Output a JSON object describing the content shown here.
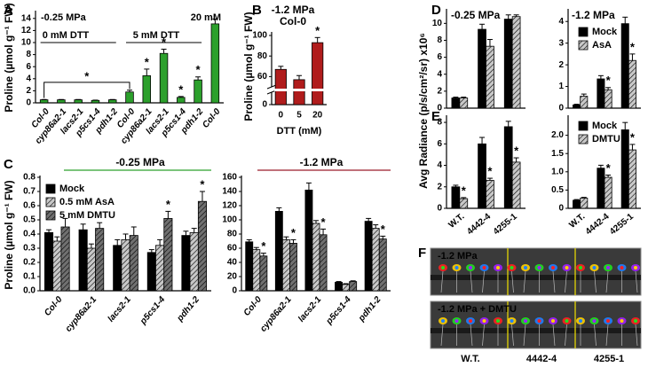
{
  "chart_data": [
    {
      "type": "bar",
      "panel": "A",
      "ylabel": "Proline (µmol g⁻¹ FW)",
      "notes": [
        "-0.25 MPa",
        "20 mM",
        "0 mM DTT",
        "5 mM DTT"
      ],
      "bracket_note": "*",
      "categories": [
        "Col-0",
        "cyp86a2-1",
        "lacs2-1",
        "p5cs1-4",
        "pdh1-2",
        "Col-0",
        "cyp86a2-1",
        "lacs2-1",
        "p5cs1-4",
        "pdh1-2",
        "Col-0"
      ],
      "series": [
        {
          "color": "#2ca02c",
          "values": [
            0.5,
            0.5,
            0.5,
            0.4,
            0.5,
            1.8,
            4.5,
            8.2,
            0.9,
            3.8,
            13.1
          ],
          "errors": [
            0.05,
            0.05,
            0.05,
            0.05,
            0.05,
            0.3,
            1.1,
            0.7,
            0.15,
            0.5,
            0.8
          ],
          "annotations": [
            null,
            null,
            null,
            null,
            null,
            null,
            "*",
            "*",
            "*",
            "*",
            null
          ]
        }
      ],
      "ylim": [
        0,
        15
      ],
      "yticks": [
        0,
        2,
        4,
        6,
        8,
        10,
        12,
        14
      ]
    },
    {
      "type": "bar",
      "panel": "B",
      "title": "-1.2 MPa",
      "subtitle": "Col-0",
      "ylabel": "Proline (µmol g⁻¹ FW)",
      "xlabel": "DTT (mM)",
      "categories": [
        "0",
        "5",
        "20"
      ],
      "series": [
        {
          "color": "#b01c1c",
          "values": [
            67,
            57,
            93
          ],
          "errors": [
            3,
            4,
            5
          ],
          "annotations": [
            null,
            null,
            "*"
          ]
        }
      ],
      "ylim": [
        0,
        100
      ],
      "axis_break": [
        5,
        50
      ],
      "yticks": [
        0,
        60,
        80,
        100
      ]
    },
    {
      "type": "bar",
      "panel": "C",
      "title": "-0.25 MPa",
      "title_color": "#2ca02c",
      "ylabel": "Proline (µmol g⁻¹ FW)",
      "categories": [
        "Col-0",
        "cyp86a2-1",
        "lacs2-1",
        "p5cs1-4",
        "pdh1-2"
      ],
      "series": [
        {
          "name": "Mock",
          "color": "#000000",
          "values": [
            0.41,
            0.43,
            0.32,
            0.27,
            0.39
          ],
          "errors": [
            0.02,
            0.04,
            0.04,
            0.02,
            0.03
          ]
        },
        {
          "name": "0.5 mM AsA",
          "color": "#c8c8c8",
          "hatch": true,
          "values": [
            0.35,
            0.3,
            0.36,
            0.32,
            0.41
          ],
          "errors": [
            0.03,
            0.03,
            0.04,
            0.04,
            0.03
          ]
        },
        {
          "name": "5 mM DMTU",
          "color": "#707070",
          "hatch": true,
          "values": [
            0.45,
            0.44,
            0.39,
            0.51,
            0.63
          ],
          "errors": [
            0.06,
            0.04,
            0.06,
            0.05,
            0.07
          ],
          "annotations": [
            null,
            null,
            null,
            "*",
            "*"
          ]
        }
      ],
      "ylim": [
        0,
        0.8
      ],
      "yticks": [
        {
          "value": 0,
          "label": "0.0"
        },
        0.1,
        0.2,
        0.3,
        0.4,
        0.5,
        0.6,
        0.7,
        0.8
      ]
    },
    {
      "type": "bar",
      "title": "-1.2 MPa",
      "title_color": "#9b1c2a",
      "categories": [
        "Col-0",
        "cyp86a2-1",
        "lacs2-1",
        "p5cs1-4",
        "pdh1-2"
      ],
      "series": [
        {
          "color": "#000000",
          "values": [
            69,
            112,
            142,
            12,
            98
          ],
          "errors": [
            3,
            5,
            10,
            1,
            4
          ]
        },
        {
          "color": "#c8c8c8",
          "hatch": true,
          "values": [
            58,
            72,
            95,
            9,
            88
          ],
          "errors": [
            3,
            4,
            4,
            1,
            5
          ]
        },
        {
          "color": "#707070",
          "hatch": true,
          "values": [
            49,
            67,
            79,
            13,
            73
          ],
          "errors": [
            4,
            5,
            8,
            1,
            4
          ],
          "annotations": [
            "*",
            "*",
            "*",
            null,
            "*"
          ]
        }
      ],
      "ylim": [
        0,
        160
      ],
      "yticks": [
        0,
        20,
        40,
        60,
        80,
        100,
        120,
        140,
        160
      ]
    },
    {
      "type": "bar",
      "panel": "D",
      "title": "-0.25 MPa",
      "title_color": "#2ca02c",
      "ylabel": "Avg Radiance (p/s/cm²/sr) x10⁶",
      "series": [
        {
          "color": "#000000",
          "values": [
            1.2,
            9.3,
            10.5
          ],
          "errors": [
            0.1,
            0.6,
            0.5
          ]
        },
        {
          "color": "#c8c8c8",
          "hatch": true,
          "values": [
            1.2,
            7.3,
            10.8
          ],
          "errors": [
            0.1,
            0.8,
            0.2
          ]
        }
      ],
      "ylim": [
        0,
        11.5
      ],
      "yticks": [
        0,
        2,
        4,
        6,
        8,
        10
      ]
    },
    {
      "type": "bar",
      "title": "-1.2 MPa",
      "title_color": "#9b1c2a",
      "series": [
        {
          "name": "Mock",
          "color": "#000000",
          "values": [
            0.15,
            1.35,
            3.9
          ],
          "errors": [
            0.03,
            0.15,
            0.3
          ]
        },
        {
          "name": "AsA",
          "color": "#c8c8c8",
          "hatch": true,
          "values": [
            0.55,
            0.85,
            2.2
          ],
          "errors": [
            0.1,
            0.1,
            0.3
          ],
          "annotations": [
            null,
            "*",
            "*"
          ]
        }
      ],
      "ylim": [
        0,
        4.5
      ],
      "yticks": [
        0,
        1,
        2,
        3,
        4
      ]
    },
    {
      "type": "bar",
      "panel": "E",
      "categories": [
        "W.T.",
        "4442-4",
        "4255-1"
      ],
      "series": [
        {
          "color": "#000000",
          "values": [
            2.0,
            6.0,
            7.6
          ],
          "errors": [
            0.15,
            0.6,
            0.5
          ]
        },
        {
          "color": "#c8c8c8",
          "hatch": true,
          "values": [
            0.9,
            2.6,
            4.3
          ],
          "errors": [
            0.1,
            0.2,
            0.4
          ],
          "annotations": [
            "*",
            "*",
            "*"
          ]
        }
      ],
      "ylim": [
        0,
        8.5
      ],
      "yticks": [
        0,
        2,
        4,
        6,
        8
      ]
    },
    {
      "type": "bar",
      "categories": [
        "W.T.",
        "4442-4",
        "4255-1"
      ],
      "series": [
        {
          "name": "Mock",
          "color": "#000000",
          "values": [
            0.22,
            1.1,
            2.15
          ],
          "errors": [
            0.02,
            0.08,
            0.2
          ]
        },
        {
          "name": "DMTU",
          "color": "#c8c8c8",
          "hatch": true,
          "values": [
            0.28,
            0.85,
            1.6
          ],
          "errors": [
            0.02,
            0.06,
            0.15
          ],
          "annotations": [
            null,
            "*",
            "*"
          ]
        }
      ],
      "ylim": [
        0,
        2.5
      ],
      "yticks": [
        0,
        {
          "value": 0.5,
          "label": "0.5"
        },
        {
          "value": 1,
          "label": "1.0"
        },
        {
          "value": 1.5,
          "label": "1.5"
        },
        {
          "value": 2,
          "label": "2.0"
        }
      ]
    },
    {
      "type": "image",
      "panel": "F",
      "rows": [
        "-1.2 MPa",
        "-1.2 MPa + DMTU"
      ],
      "categories": [
        "W.T.",
        "4442-4",
        "4255-1"
      ]
    }
  ]
}
